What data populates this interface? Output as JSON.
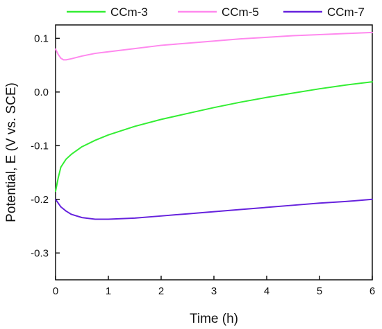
{
  "chart_data": {
    "type": "line",
    "xlabel": "Time (h)",
    "ylabel": "Potential, E (V vs. SCE)",
    "xlim": [
      0,
      6
    ],
    "ylim": [
      -0.35,
      0.125
    ],
    "xticks": [
      0,
      1,
      2,
      3,
      4,
      5,
      6
    ],
    "xtick_labels": [
      "0",
      "1",
      "2",
      "3",
      "4",
      "5",
      "6"
    ],
    "yticks": [
      0.1,
      0.0,
      -0.1,
      -0.2,
      -0.3
    ],
    "ytick_labels": [
      "0.1",
      "0.0",
      "-0.1",
      "-0.2",
      "-0.3"
    ],
    "grid": false,
    "legend_position": "top",
    "series": [
      {
        "name": "CCm-3",
        "color": "#33ee33",
        "x": [
          0,
          0.05,
          0.1,
          0.2,
          0.3,
          0.5,
          0.75,
          1,
          1.5,
          2,
          2.5,
          3,
          3.5,
          4,
          4.5,
          5,
          5.5,
          6
        ],
        "y": [
          -0.185,
          -0.16,
          -0.14,
          -0.125,
          -0.116,
          -0.102,
          -0.09,
          -0.08,
          -0.064,
          -0.051,
          -0.04,
          -0.029,
          -0.019,
          -0.01,
          -0.002,
          0.006,
          0.013,
          0.019
        ]
      },
      {
        "name": "CCm-5",
        "color": "#ff88ee",
        "x": [
          0,
          0.05,
          0.1,
          0.15,
          0.2,
          0.3,
          0.5,
          0.75,
          1,
          1.5,
          2,
          2.5,
          3,
          3.5,
          4,
          4.5,
          5,
          5.5,
          6
        ],
        "y": [
          0.08,
          0.07,
          0.063,
          0.06,
          0.06,
          0.062,
          0.067,
          0.072,
          0.075,
          0.081,
          0.087,
          0.091,
          0.095,
          0.099,
          0.102,
          0.105,
          0.107,
          0.109,
          0.111
        ]
      },
      {
        "name": "CCm-7",
        "color": "#6622dd",
        "x": [
          0,
          0.1,
          0.2,
          0.3,
          0.5,
          0.75,
          1,
          1.5,
          2,
          2.5,
          3,
          3.5,
          4,
          4.5,
          5,
          5.5,
          6
        ],
        "y": [
          -0.2,
          -0.214,
          -0.222,
          -0.228,
          -0.234,
          -0.237,
          -0.237,
          -0.235,
          -0.231,
          -0.227,
          -0.223,
          -0.219,
          -0.215,
          -0.211,
          -0.207,
          -0.204,
          -0.2
        ]
      }
    ]
  }
}
